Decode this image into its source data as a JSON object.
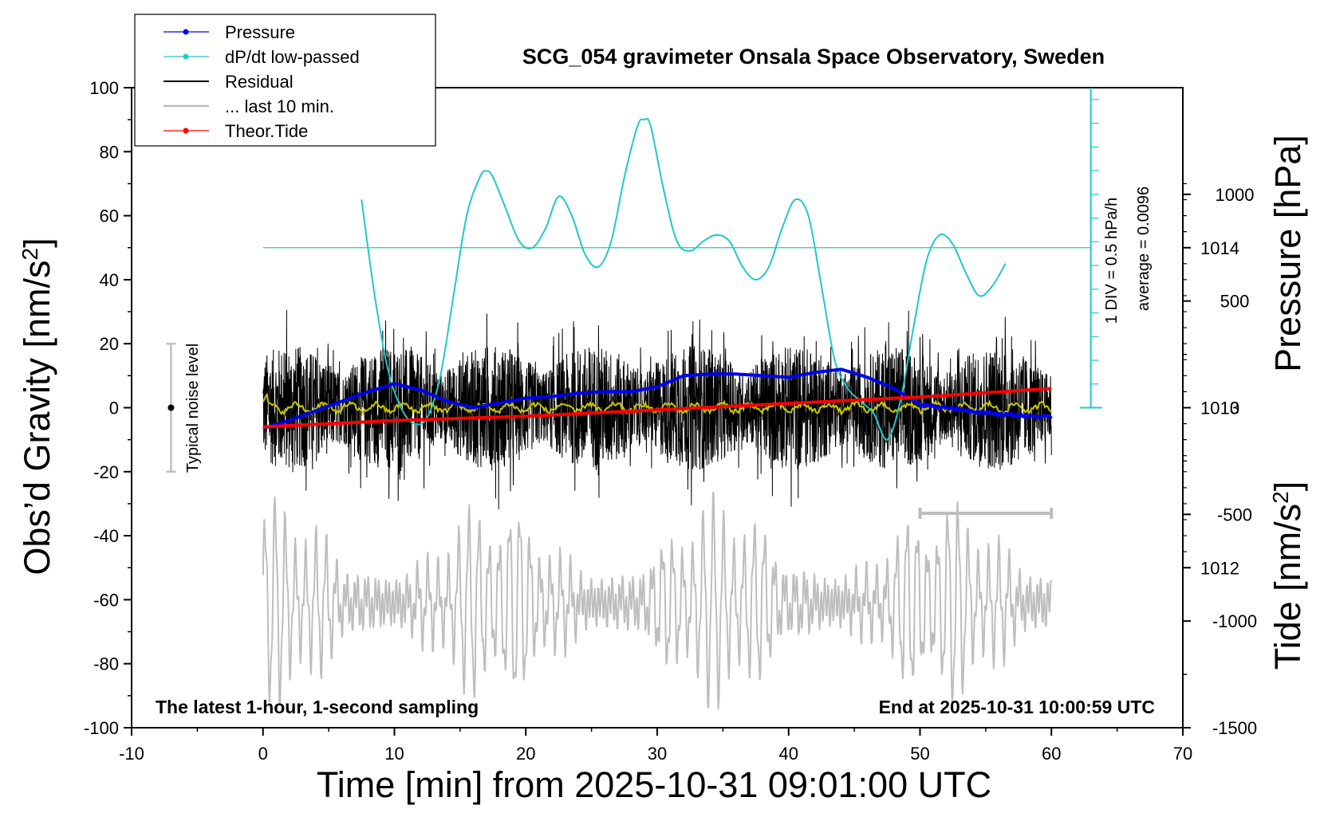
{
  "chart_data": {
    "type": "line",
    "title": "SCG_054 gravimeter Onsala Space Observatory, Sweden",
    "xlabel": "Time [min] from 2025-10-31 09:01:00 UTC",
    "ylabel_left_main": "Obs’d Gravity [nm/s",
    "ylabel_left_sup": "2",
    "ylabel_left_tail": "]",
    "ylabel_right_pressure": "Pressure [hPa]",
    "ylabel_right_tide_main": "Tide [nm/s",
    "ylabel_right_tide_sup": "2",
    "ylabel_right_tide_tail": "]",
    "xlim": [
      -10,
      70
    ],
    "ylim_left": [
      -100,
      100
    ],
    "ylim_pressure": [
      1011,
      1015
    ],
    "ylim_tide": [
      -1500,
      1500
    ],
    "x_ticks": [
      "-10",
      "0",
      "10",
      "20",
      "30",
      "40",
      "50",
      "60",
      "70"
    ],
    "y_ticks_left": [
      "100",
      "80",
      "60",
      "40",
      "20",
      "0",
      "-20",
      "-40",
      "-60",
      "-80",
      "-100"
    ],
    "y_ticks_pressure": [
      "1014",
      "1013",
      "1012"
    ],
    "y_ticks_tide": [
      "1000",
      "500",
      "0",
      "-500",
      "-1000",
      "-1500"
    ],
    "legend_position": "top-left",
    "legend": [
      "Pressure",
      "dP/dt low-passed",
      "Residual",
      "... last 10 min.",
      "Theor.Tide"
    ],
    "colors": {
      "pressure": "#0000ee",
      "dpdt": "#20c8c8",
      "residual": "#000000",
      "last10": "#bebebe",
      "tide": "#ff0000",
      "smoothed": "#c8c800",
      "noise_bar": "#bebebe"
    },
    "annotations": {
      "dpdt_scale": "1 DIV = 0.5 hPa/h",
      "dpdt_average": "average = 0.0096",
      "noise_label": "Typical noise level",
      "bottom_left": "The latest 1-hour, 1-second sampling",
      "bottom_right": "End at 2025-10-31 10:00:59 UTC"
    },
    "noise_level_range": [
      -20,
      20
    ],
    "series": [
      {
        "name": "Pressure",
        "axis": "pressure",
        "x": [
          0,
          2,
          4,
          6,
          8,
          10,
          12,
          14,
          16,
          18,
          20,
          22,
          24,
          26,
          28,
          30,
          32,
          34,
          36,
          38,
          40,
          42,
          44,
          46,
          48,
          50,
          52,
          54,
          56,
          58,
          60
        ],
        "y": [
          1012.87,
          1012.92,
          1012.98,
          1013.04,
          1013.1,
          1013.15,
          1013.11,
          1013.04,
          1013.0,
          1013.03,
          1013.06,
          1013.07,
          1013.09,
          1013.1,
          1013.1,
          1013.13,
          1013.2,
          1013.21,
          1013.21,
          1013.2,
          1013.19,
          1013.22,
          1013.24,
          1013.19,
          1013.12,
          1013.02,
          1013.0,
          1012.98,
          1012.96,
          1012.95,
          1012.94
        ]
      },
      {
        "name": "dP/dt low-passed",
        "axis": "left",
        "x": [
          7.5,
          8.5,
          9.5,
          10.5,
          11.5,
          12.5,
          13.5,
          14.5,
          15.5,
          16.5,
          17.0,
          17.5,
          18.5,
          19.5,
          20.5,
          21.5,
          22.5,
          23.5,
          24.5,
          25.5,
          26.5,
          27.5,
          28.5,
          29.0,
          29.5,
          30.5,
          31.5,
          32.5,
          33.5,
          34.5,
          35.5,
          36.5,
          37.5,
          38.5,
          39.5,
          40.5,
          41.5,
          42.5,
          43.5,
          44.5,
          45.5,
          46.5,
          47.5,
          48.5,
          49.5,
          50.5,
          51.5,
          52.5,
          53.5,
          54.5,
          55.5,
          56.5
        ],
        "y": [
          65,
          35,
          12,
          0,
          -5,
          -3,
          10,
          35,
          60,
          72,
          74,
          72,
          62,
          52,
          50,
          56,
          66,
          60,
          48,
          44,
          52,
          72,
          88,
          90,
          88,
          68,
          52,
          49,
          52,
          54,
          52,
          44,
          40,
          44,
          56,
          65,
          60,
          38,
          15,
          6,
          2,
          -2,
          -10,
          2,
          25,
          46,
          54,
          51,
          42,
          35,
          38,
          45
        ]
      },
      {
        "name": "Theor.Tide",
        "axis": "tide",
        "x": [
          0,
          10,
          20,
          30,
          40,
          50,
          60
        ],
        "y": [
          -90,
          -60,
          -40,
          -10,
          20,
          50,
          90
        ]
      }
    ],
    "residual_noise_amplitude_nm_s2": 28,
    "last10_center_nm_s2": -61,
    "last10_amplitude_nm_s2": 30,
    "time_bar_x": [
      50,
      60
    ]
  }
}
